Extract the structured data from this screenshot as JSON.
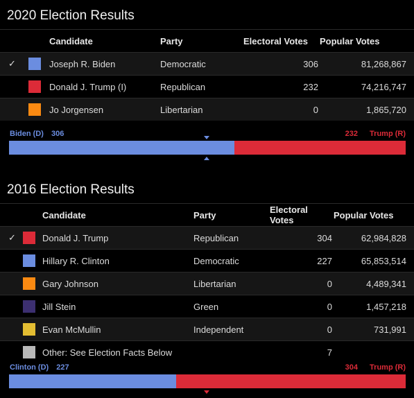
{
  "colors": {
    "democratic": "#6b8de0",
    "republican": "#dc2b38",
    "libertarian": "#fb8a12",
    "green": "#3c2f70",
    "independent": "#e3bd32",
    "other": "#b9b9b9"
  },
  "e2020": {
    "title": "2020 Election Results",
    "headers": {
      "candidate": "Candidate",
      "party": "Party",
      "electoral": "Electoral Votes",
      "popular": "Popular Votes"
    },
    "rows": [
      {
        "check": "✓",
        "name": "Joseph R. Biden",
        "party": "Democratic",
        "electoral": "306",
        "popular": "81,268,867",
        "color": "#6b8de0"
      },
      {
        "check": "",
        "name": "Donald J. Trump (I)",
        "party": "Republican",
        "electoral": "232",
        "popular": "74,216,747",
        "color": "#dc2b38"
      },
      {
        "check": "",
        "name": "Jo Jorgensen",
        "party": "Libertarian",
        "electoral": "0",
        "popular": "1,865,720",
        "color": "#fb8a12"
      }
    ],
    "bar": {
      "left_name": "Biden (D)",
      "left_votes": "306",
      "right_votes": "232",
      "right_name": "Trump (R)",
      "left_fraction": 0.5688
    }
  },
  "e2016": {
    "title": "2016 Election Results",
    "headers": {
      "candidate": "Candidate",
      "party": "Party",
      "electoral": "Electoral Votes",
      "popular": "Popular Votes"
    },
    "rows": [
      {
        "check": "✓",
        "name": "Donald J. Trump",
        "party": "Republican",
        "electoral": "304",
        "popular": "62,984,828",
        "color": "#dc2b38"
      },
      {
        "check": "",
        "name": "Hillary R. Clinton",
        "party": "Democratic",
        "electoral": "227",
        "popular": "65,853,514",
        "color": "#6b8de0"
      },
      {
        "check": "",
        "name": "Gary Johnson",
        "party": "Libertarian",
        "electoral": "0",
        "popular": "4,489,341",
        "color": "#fb8a12"
      },
      {
        "check": "",
        "name": "Jill Stein",
        "party": "Green",
        "electoral": "0",
        "popular": "1,457,218",
        "color": "#3c2f70"
      },
      {
        "check": "",
        "name": "Evan McMullin",
        "party": "Independent",
        "electoral": "0",
        "popular": "731,991",
        "color": "#e3bd32"
      },
      {
        "check": "",
        "name": "Other: See Election Facts Below",
        "party": "",
        "electoral": "7",
        "popular": "",
        "color": "#b9b9b9"
      }
    ],
    "bar": {
      "left_name": "Clinton (D)",
      "left_votes": "227",
      "right_votes": "304",
      "right_name": "Trump (R)",
      "left_fraction": 0.4219
    }
  }
}
